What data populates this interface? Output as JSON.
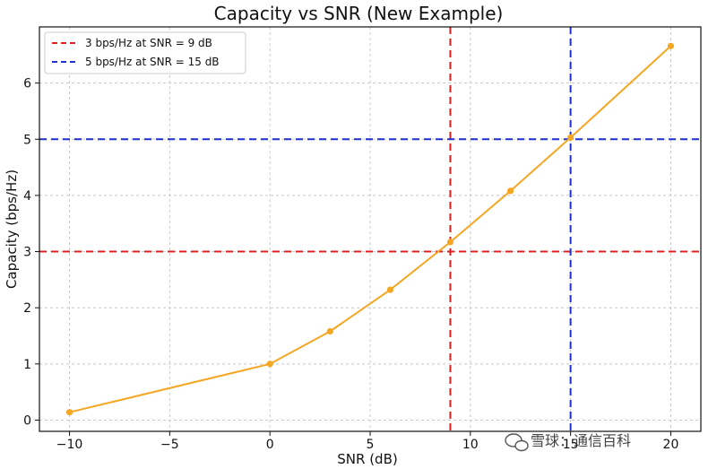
{
  "chart_data": {
    "type": "line",
    "title": "Capacity vs SNR (New Example)",
    "xlabel": "SNR (dB)",
    "ylabel": "Capacity (bps/Hz)",
    "xlim": [
      -11.5,
      21.5
    ],
    "ylim": [
      -0.2,
      7.0
    ],
    "xticks": [
      -10,
      -5,
      0,
      5,
      10,
      15,
      20
    ],
    "xtick_labels": [
      "−10",
      "−5",
      "0",
      "5",
      "10",
      "15",
      "20"
    ],
    "yticks": [
      0,
      1,
      2,
      3,
      4,
      5,
      6
    ],
    "ytick_labels": [
      "0",
      "1",
      "2",
      "3",
      "4",
      "5",
      "6"
    ],
    "grid": true,
    "legend_position": "top-left",
    "series": [
      {
        "color": "#f5a623",
        "x": [
          -10,
          0,
          3,
          6,
          9,
          12,
          15,
          20
        ],
        "y": [
          0.14,
          1.0,
          1.58,
          2.32,
          3.17,
          4.08,
          5.03,
          6.66
        ]
      }
    ],
    "reference_lines": [
      {
        "orientation": "horizontal",
        "value": 3,
        "color": "#e02020",
        "style": "dashed",
        "legend": "3 bps/Hz at SNR = 9 dB"
      },
      {
        "orientation": "vertical",
        "value": 9,
        "color": "#e02020",
        "style": "dashed"
      },
      {
        "orientation": "horizontal",
        "value": 5,
        "color": "#1f2fd0",
        "style": "dashed",
        "legend": "5 bps/Hz at SNR = 15 dB"
      },
      {
        "orientation": "vertical",
        "value": 15,
        "color": "#1f2fd0",
        "style": "dashed"
      }
    ]
  },
  "watermark": {
    "text": "雪球：通信百科",
    "icon": "wechat-icon"
  }
}
